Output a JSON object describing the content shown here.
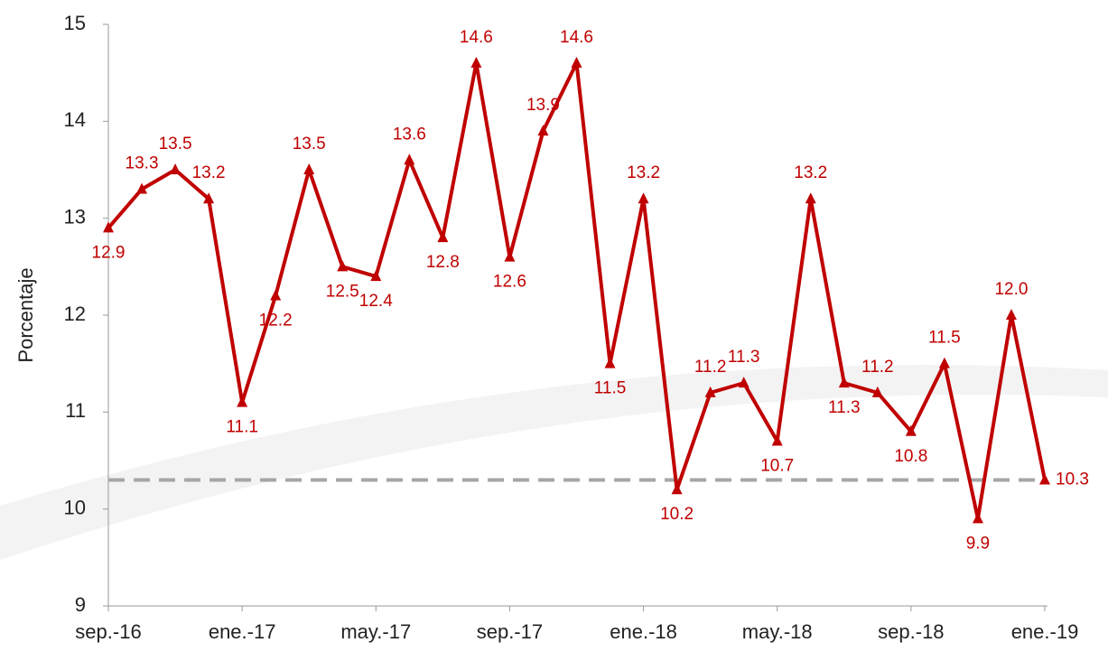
{
  "chart_data": {
    "type": "line",
    "y_label": "Porcentaje",
    "categories": [
      "sep.-16",
      null,
      null,
      null,
      "ene.-17",
      null,
      null,
      null,
      "may.-17",
      null,
      null,
      null,
      "sep.-17",
      null,
      null,
      null,
      "ene.-18",
      null,
      null,
      null,
      "may.-18",
      null,
      null,
      null,
      "sep.-18",
      null,
      null,
      null,
      "ene.-19"
    ],
    "series": [
      {
        "color": "#c00000",
        "values": [
          12.9,
          13.3,
          13.5,
          13.2,
          11.1,
          12.2,
          13.5,
          12.5,
          12.4,
          13.6,
          12.8,
          14.6,
          12.6,
          13.9,
          14.6,
          11.5,
          13.2,
          10.2,
          11.2,
          11.3,
          10.7,
          13.2,
          11.3,
          11.2,
          10.8,
          11.5,
          9.9,
          12.0,
          10.3
        ],
        "value_labels": [
          "12.9",
          "13.3",
          "13.5",
          "13.2",
          "11.1",
          "12.2",
          "13.5",
          "12.5",
          "12.4",
          "13.6",
          "12.8",
          "14.6",
          "12.6",
          "13.9",
          "14.6",
          "11.5",
          "13.2",
          "10.2",
          "11.2",
          "11.3",
          "10.7",
          "13.2",
          "11.3",
          "11.2",
          "10.8",
          "11.5",
          "9.9",
          "12.0",
          "10.3"
        ]
      }
    ],
    "reference_line": {
      "value": 10.3,
      "color": "#a6a6a6"
    },
    "ylim": [
      9,
      15
    ],
    "yticks": [
      9,
      10,
      11,
      12,
      13,
      14,
      15
    ]
  }
}
